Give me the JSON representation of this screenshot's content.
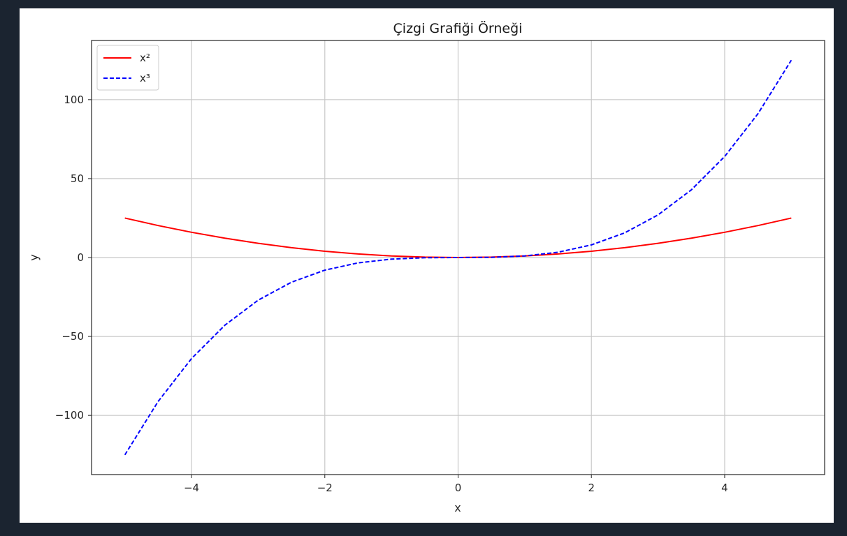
{
  "window": {
    "frame_color": "#1b2430",
    "panel_color": "#ffffff"
  },
  "chart_data": {
    "type": "line",
    "title": "Çizgi Grafiği Örneği",
    "xlabel": "x",
    "ylabel": "y",
    "xlim": [
      -5.5,
      5.5
    ],
    "ylim": [
      -137.5,
      137.5
    ],
    "x_ticks": [
      -4,
      -2,
      0,
      2,
      4
    ],
    "x_tick_labels": [
      "−4",
      "−2",
      "0",
      "2",
      "4"
    ],
    "y_ticks": [
      -100,
      -50,
      0,
      50,
      100
    ],
    "y_tick_labels": [
      "−100",
      "−50",
      "0",
      "50",
      "100"
    ],
    "grid": true,
    "legend_position": "top-left",
    "x": [
      -5,
      -4.5,
      -4,
      -3.5,
      -3,
      -2.5,
      -2,
      -1.5,
      -1,
      -0.5,
      0,
      0.5,
      1,
      1.5,
      2,
      2.5,
      3,
      3.5,
      4,
      4.5,
      5
    ],
    "series": [
      {
        "name": "x²",
        "color": "#ff0000",
        "style": "solid",
        "values": [
          25,
          20.25,
          16,
          12.25,
          9,
          6.25,
          4,
          2.25,
          1,
          0.25,
          0,
          0.25,
          1,
          2.25,
          4,
          6.25,
          9,
          12.25,
          16,
          20.25,
          25
        ]
      },
      {
        "name": "x³",
        "color": "#0000ff",
        "style": "dashed",
        "values": [
          -125,
          -91.125,
          -64,
          -42.875,
          -27,
          -15.625,
          -8,
          -3.375,
          -1,
          -0.125,
          0,
          0.125,
          1,
          3.375,
          8,
          15.625,
          27,
          42.875,
          64,
          91.125,
          125
        ]
      }
    ]
  }
}
